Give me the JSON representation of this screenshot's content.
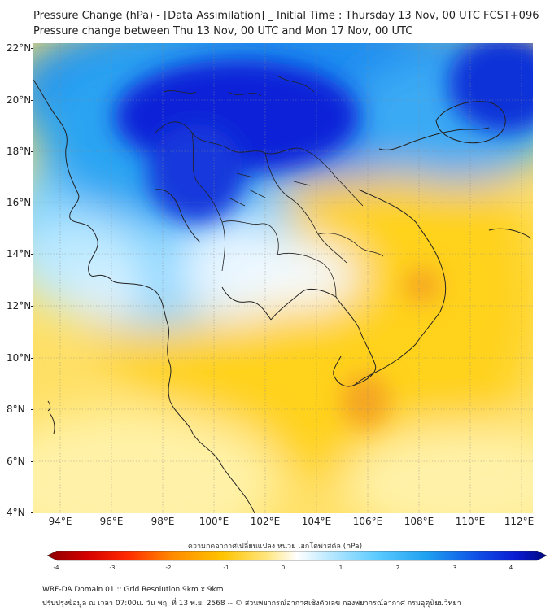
{
  "header": {
    "title_line1": "Pressure Change (hPa) - [Data Assimilation] _ Initial Time : Thursday 13 Nov, 00 UTC FCST+096",
    "title_line2": "Pressure change between Thu 13 Nov, 00 UTC and Mon 17 Nov, 00 UTC"
  },
  "map": {
    "lat_labels": [
      "22°N",
      "20°N",
      "18°N",
      "16°N",
      "14°N",
      "12°N",
      "10°N",
      "8°N",
      "6°N",
      "4°N"
    ],
    "lon_labels": [
      "94°E",
      "96°E",
      "98°E",
      "100°E",
      "102°E",
      "104°E",
      "106°E",
      "108°E",
      "110°E",
      "112°E"
    ],
    "lat_range": [
      4,
      22.2
    ],
    "lon_range": [
      93,
      112.4
    ],
    "field": "pressure change (hPa)",
    "colors": {
      "strong_rise": "#0a24d8",
      "rise": "#1e8cf0",
      "weak_rise": "#7fd3ff",
      "neutral": "#eef8ff",
      "weak_fall": "#ffe98a",
      "fall": "#ffd21e",
      "strong_fall": "#f5a623",
      "coastline": "#222222"
    }
  },
  "colorbar": {
    "title": "ความกดอากาศเปลี่ยนแปลง หน่วย เฮกโตพาสคัล (hPa)",
    "ticks": [
      "-4",
      "-3",
      "-2",
      "-1",
      "0",
      "1",
      "2",
      "3",
      "4"
    ],
    "range": [
      -4,
      4
    ]
  },
  "footer": {
    "line1": "WRF-DA Domain 01 :: Grid Resolution 9km x 9km",
    "line2": "ปรับปรุงข้อมูล ณ เวลา 07:00น. วัน พฤ. ที่ 13 พ.ย. 2568 -- © ส่วนพยากรณ์อากาศเชิงตัวเลข กองพยากรณ์อากาศ กรมอุตุนิยมวิทยา"
  }
}
